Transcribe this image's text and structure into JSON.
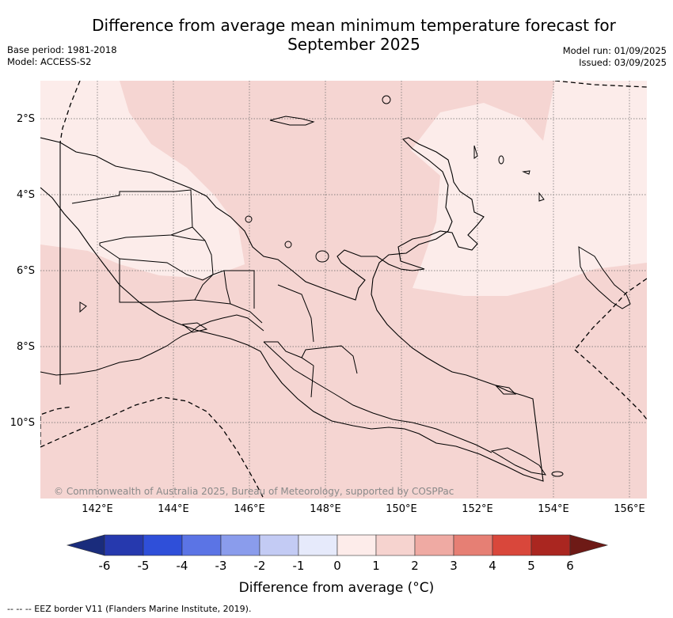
{
  "title_line1": "Difference from average mean minimum temperature forecast for",
  "title_line2": "September 2025",
  "meta_left": {
    "base_period": "Base period: 1981-2018",
    "model": "Model: ACCESS-S2"
  },
  "meta_right": {
    "model_run": "Model run: 01/09/2025",
    "issued": "Issued: 03/09/2025"
  },
  "map": {
    "lon_range": [
      140.5,
      156.5
    ],
    "lat_range": [
      -12.0,
      -1.0
    ],
    "lon_gridlines": [
      142,
      144,
      146,
      148,
      150,
      152,
      154,
      156
    ],
    "lat_gridlines": [
      -2,
      -4,
      -6,
      -8,
      -10
    ],
    "lat_labels": [
      "2°S",
      "4°S",
      "6°S",
      "8°S",
      "10°S"
    ],
    "lon_labels": [
      "142°E",
      "144°E",
      "146°E",
      "148°E",
      "150°E",
      "152°E",
      "154°E",
      "156°E"
    ],
    "dominant_category": "0 to 2 °C above average",
    "zones": [
      {
        "category": "1 to 2",
        "color": "#f5d5d2"
      },
      {
        "category": "0 to 1",
        "color": "#fcecea"
      }
    ],
    "credit": "© Commonwealth of Australia 2025, Bureau of Meteorology, supported by COSPPac"
  },
  "colorbar": {
    "ticks": [
      "-6",
      "-5",
      "-4",
      "-3",
      "-2",
      "-1",
      "0",
      "1",
      "2",
      "3",
      "4",
      "5",
      "6"
    ],
    "extend_low_color": "#1a2c7c",
    "extend_high_color": "#6e1a16",
    "colors": [
      "#2639ae",
      "#2f4fd9",
      "#5b74e5",
      "#8a9cec",
      "#c3cbf4",
      "#e6eafb",
      "#fdecea",
      "#f6d3cf",
      "#efaaa3",
      "#e67f74",
      "#d9473b",
      "#aa2620"
    ],
    "label": "Difference from average (°C)"
  },
  "footnote": "-- -- -- EEZ border V11 (Flanders Marine Institute, 2019)."
}
